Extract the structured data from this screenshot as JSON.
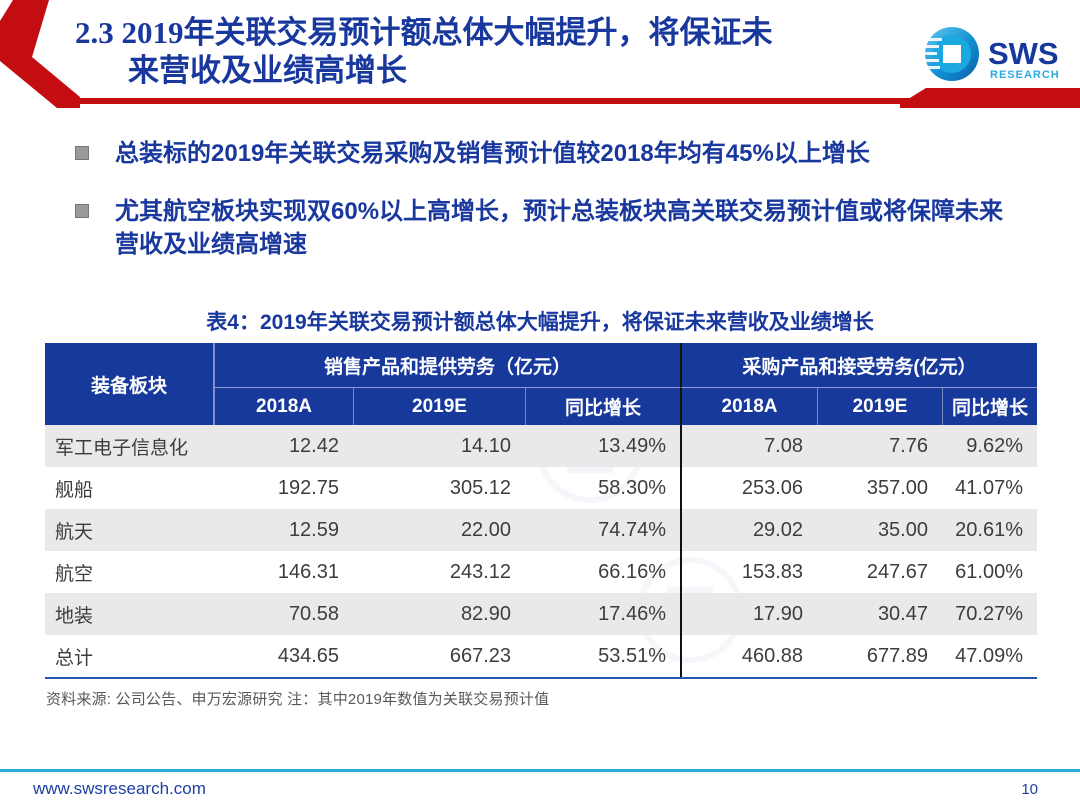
{
  "header": {
    "title_line1": "2.3 2019年关联交易预计额总体大幅提升，将保证未",
    "title_line2": "来营收及业绩高增长"
  },
  "logo": {
    "text": "SWS",
    "subtext": "RESEARCH"
  },
  "bullets": [
    "总装标的2019年关联交易采购及销售预计值较2018年均有45%以上增长",
    "尤其航空板块实现双60%以上高增长，预计总装板块高关联交易预计值或将保障未来营收及业绩高增速"
  ],
  "table": {
    "title": "表4：2019年关联交易预计额总体大幅提升，将保证未来营收及业绩增长",
    "col0_header": "装备板块",
    "groups": [
      {
        "label": "销售产品和提供劳务（亿元）",
        "columns": [
          "2018A",
          "2019E",
          "同比增长"
        ]
      },
      {
        "label": "采购产品和接受劳务(亿元）",
        "columns": [
          "2018A",
          "2019E",
          "同比增长"
        ]
      }
    ],
    "rows": [
      {
        "label": "军工电子信息化",
        "sales": [
          "12.42",
          "14.10",
          "13.49%"
        ],
        "purchase": [
          "7.08",
          "7.76",
          "9.62%"
        ]
      },
      {
        "label": "舰船",
        "sales": [
          "192.75",
          "305.12",
          "58.30%"
        ],
        "purchase": [
          "253.06",
          "357.00",
          "41.07%"
        ]
      },
      {
        "label": "航天",
        "sales": [
          "12.59",
          "22.00",
          "74.74%"
        ],
        "purchase": [
          "29.02",
          "35.00",
          "20.61%"
        ]
      },
      {
        "label": "航空",
        "sales": [
          "146.31",
          "243.12",
          "66.16%"
        ],
        "purchase": [
          "153.83",
          "247.67",
          "61.00%"
        ]
      },
      {
        "label": "地装",
        "sales": [
          "70.58",
          "82.90",
          "17.46%"
        ],
        "purchase": [
          "17.90",
          "30.47",
          "70.27%"
        ]
      },
      {
        "label": "总计",
        "sales": [
          "434.65",
          "667.23",
          "53.51%"
        ],
        "purchase": [
          "460.88",
          "677.89",
          "47.09%"
        ]
      }
    ],
    "source_note": "资料来源: 公司公告、申万宏源研究  注：其中2019年数值为关联交易预计值"
  },
  "footer": {
    "url": "www.swsresearch.com",
    "page_number": "10"
  },
  "colors": {
    "red": "#C30D10",
    "navy": "#19389E",
    "hdrbg": "#16399B",
    "cyan": "#29ABE2",
    "tbl-border": "#2356A8",
    "rowgray": "#E9E9E9"
  }
}
